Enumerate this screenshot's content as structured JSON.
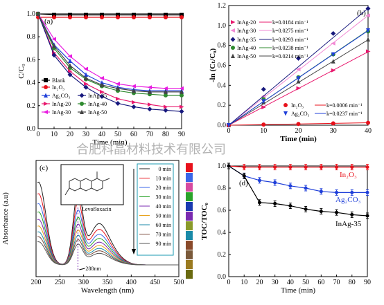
{
  "watermark": "合肥科晶材料技术有限公司",
  "chart_data": [
    {
      "panel": "(a)",
      "type": "line",
      "xlabel": "Time (min)",
      "ylabel": "C/C₀",
      "xlim": [
        0,
        90
      ],
      "ylim": [
        0,
        1.0
      ],
      "xticks": [
        0,
        10,
        20,
        30,
        40,
        50,
        60,
        70,
        80,
        90
      ],
      "yticks": [
        0.0,
        0.2,
        0.4,
        0.6,
        0.8,
        1.0
      ],
      "x": [
        0,
        10,
        20,
        30,
        40,
        50,
        60,
        70,
        80,
        90
      ],
      "legend_position": "bottom-left",
      "series": [
        {
          "name": "Blank",
          "color": "#000000",
          "marker": "square",
          "values": [
            1.0,
            0.99,
            0.99,
            0.99,
            0.99,
            0.99,
            0.99,
            0.99,
            0.99,
            0.99
          ]
        },
        {
          "name": "In₂O₃",
          "color": "#e8111b",
          "marker": "circle",
          "values": [
            0.97,
            0.97,
            0.97,
            0.97,
            0.97,
            0.97,
            0.97,
            0.97,
            0.97,
            0.97
          ]
        },
        {
          "name": "Ag₂CO₃",
          "color": "#1f3fd9",
          "marker": "triangle-up",
          "values": [
            1.0,
            0.73,
            0.59,
            0.47,
            0.4,
            0.36,
            0.34,
            0.33,
            0.33,
            0.33
          ]
        },
        {
          "name": "InAg-20",
          "color": "#e8196e",
          "marker": "triangle-right",
          "values": [
            1.0,
            0.66,
            0.5,
            0.39,
            0.32,
            0.26,
            0.23,
            0.21,
            0.19,
            0.19
          ]
        },
        {
          "name": "InAg-30",
          "color": "#e81de0",
          "marker": "triangle-left",
          "values": [
            1.0,
            0.78,
            0.63,
            0.52,
            0.44,
            0.39,
            0.37,
            0.36,
            0.35,
            0.35
          ]
        },
        {
          "name": "InAg-35",
          "color": "#17187d",
          "marker": "diamond",
          "values": [
            1.0,
            0.64,
            0.47,
            0.36,
            0.28,
            0.22,
            0.19,
            0.17,
            0.16,
            0.15
          ]
        },
        {
          "name": "InAg-40",
          "color": "#2f8a2f",
          "marker": "circle",
          "values": [
            1.0,
            0.7,
            0.53,
            0.43,
            0.37,
            0.33,
            0.31,
            0.3,
            0.29,
            0.29
          ]
        },
        {
          "name": "InAg-50",
          "color": "#444444",
          "marker": "triangle-up",
          "values": [
            1.0,
            0.72,
            0.55,
            0.44,
            0.38,
            0.35,
            0.33,
            0.32,
            0.32,
            0.32
          ]
        }
      ]
    },
    {
      "panel": "(b)",
      "type": "scatter",
      "xlabel": "Time (min)",
      "ylabel": "-ln (Cₜ/C₀)",
      "xlim": [
        0,
        40
      ],
      "ylim": [
        0,
        1.2
      ],
      "xticks": [
        0,
        10,
        20,
        30,
        40
      ],
      "yticks": [
        0.0,
        0.2,
        0.4,
        0.6,
        0.8,
        1.0,
        1.2
      ],
      "x": [
        0,
        10,
        20,
        30,
        40
      ],
      "legend_position": "top-left and bottom-right",
      "series": [
        {
          "name": "InAg-20",
          "k_label": "k=0.0184 min⁻¹",
          "k": 0.0184,
          "color": "#e8196e",
          "marker": "triangle-right",
          "values": [
            0.0,
            0.18,
            0.37,
            0.55,
            0.74
          ]
        },
        {
          "name": "InAg-30",
          "k_label": "k=0.0275 min⁻¹",
          "k": 0.0275,
          "color": "#f28ad4",
          "marker": "triangle-left",
          "values": [
            0.0,
            0.29,
            0.56,
            0.82,
            1.1
          ]
        },
        {
          "name": "InAg-35",
          "k_label": "k=0.0293 min⁻¹",
          "k": 0.0293,
          "color": "#17187d",
          "marker": "diamond",
          "values": [
            0.0,
            0.36,
            0.67,
            0.92,
            1.17
          ]
        },
        {
          "name": "InAg-40",
          "k_label": "k=0.0238 min⁻¹",
          "k": 0.0238,
          "color": "#2f8a2f",
          "marker": "circle",
          "values": [
            0.0,
            0.26,
            0.48,
            0.71,
            0.94
          ]
        },
        {
          "name": "InAg-50",
          "k_label": "k=0.0214 min⁻¹",
          "k": 0.0214,
          "color": "#444444",
          "marker": "triangle-up",
          "values": [
            0.0,
            0.23,
            0.44,
            0.64,
            0.86
          ]
        },
        {
          "name": "In₂O₃",
          "k_label": "k=0.0006 min⁻¹",
          "k": 0.0006,
          "color": "#e8111b",
          "marker": "circle",
          "values": [
            0.0,
            0.006,
            0.012,
            0.018,
            0.024
          ]
        },
        {
          "name": "Ag₂CO₃",
          "k_label": "k=0.0237 min⁻¹",
          "k": 0.0237,
          "color": "#1f3fd9",
          "marker": "triangle-down",
          "values": [
            0.0,
            0.24,
            0.47,
            0.71,
            0.95
          ]
        }
      ]
    },
    {
      "panel": "(c)",
      "type": "line",
      "xlabel": "Wavelength (nm)",
      "ylabel": "Absorbance (a.u)",
      "xlim": [
        200,
        500
      ],
      "xticks": [
        200,
        250,
        300,
        350,
        400,
        450,
        500
      ],
      "inset_label": "Levofloxacin",
      "peak_label": "288nm",
      "series": [
        {
          "name": "0 min",
          "color": "#222222",
          "scale": 1.0
        },
        {
          "name": "10 min",
          "color": "#e8111b",
          "scale": 0.86
        },
        {
          "name": "20 min",
          "color": "#3a66e8",
          "scale": 0.74
        },
        {
          "name": "30 min",
          "color": "#2aa32a",
          "scale": 0.64
        },
        {
          "name": "40 min",
          "color": "#7a2ab0",
          "scale": 0.55
        },
        {
          "name": "50 min",
          "color": "#e8a21a",
          "scale": 0.47
        },
        {
          "name": "60 min",
          "color": "#1a8aa8",
          "scale": 0.4
        },
        {
          "name": "70 min",
          "color": "#7a4a3a",
          "scale": 0.34
        },
        {
          "name": "90 min",
          "color": "#555555",
          "scale": 0.28
        }
      ],
      "legend_swatches": [
        "#e8111b",
        "#3a66e8",
        "#d64aa0",
        "#2aa32a",
        "#1a3ab0",
        "#7a2ab0",
        "#8a9a2a",
        "#1a8aa8",
        "#8a4a2a",
        "#7a5a3a",
        "#9a7a20",
        "#6a6a10"
      ]
    },
    {
      "panel": "(d)",
      "type": "line",
      "xlabel": "Time (min)",
      "ylabel": "TOC/TOC₀",
      "xlim": [
        0,
        90
      ],
      "ylim": [
        0.0,
        1.0
      ],
      "xticks": [
        0,
        10,
        20,
        30,
        40,
        50,
        60,
        70,
        80,
        90
      ],
      "yticks": [
        0.0,
        0.2,
        0.4,
        0.6,
        0.8,
        1.0
      ],
      "x": [
        0,
        10,
        20,
        30,
        40,
        50,
        60,
        70,
        80,
        90
      ],
      "series": [
        {
          "name": "In₂O₃",
          "color": "#e8111b",
          "values": [
            1.0,
            0.99,
            0.99,
            0.99,
            0.99,
            0.99,
            0.99,
            0.99,
            0.99,
            0.99
          ]
        },
        {
          "name": "Ag₂CO₃",
          "color": "#1f3fd9",
          "values": [
            1.0,
            0.91,
            0.87,
            0.85,
            0.82,
            0.8,
            0.77,
            0.76,
            0.76,
            0.76
          ]
        },
        {
          "name": "InAg-35",
          "color": "#000000",
          "values": [
            1.0,
            0.91,
            0.67,
            0.66,
            0.64,
            0.61,
            0.59,
            0.58,
            0.56,
            0.55
          ]
        }
      ]
    }
  ]
}
